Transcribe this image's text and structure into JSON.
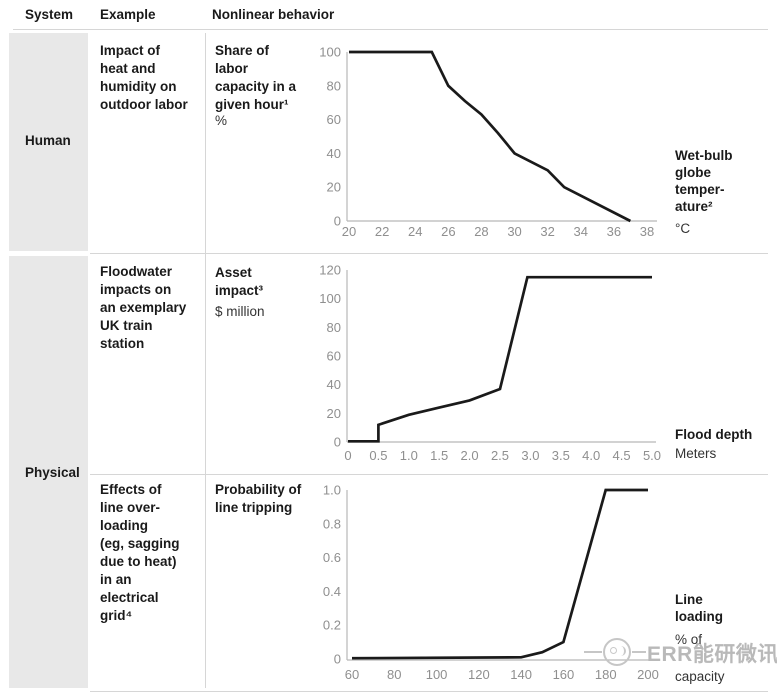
{
  "header": {
    "col_system": "System",
    "col_example": "Example",
    "col_behavior": "Nonlinear behavior"
  },
  "systems": {
    "human": "Human",
    "physical": "Physical"
  },
  "rows": [
    {
      "example": "Impact of\nheat and\nhumidity on\noutdoor labor"
    },
    {
      "example": "Floodwater\nimpacts on\nan exemplary\nUK train\nstation"
    },
    {
      "example": "Effects of\nline over-\nloading\n(eg, sagging\ndue to heat)\nin an\nelectrical\ngrid⁴"
    }
  ],
  "watermark": {
    "text": "ERR能研微讯"
  },
  "colors": {
    "ink": "#1a1a1a",
    "tick_label": "#8f8f8f",
    "axis_line": "#b8b8b8",
    "data_line": "#1a1a1a",
    "cell_gray": "#e8e8e8",
    "rule_gray": "#d6d6d6",
    "watermark_gray": "#b9b9b9"
  },
  "chart_data": [
    {
      "type": "line",
      "ylabel": "Share of labor capacity in a given hour¹",
      "ylabel_display": "Share of\nlabor\ncapacity in a\ngiven hour¹",
      "ylabel_unit": "%",
      "xlabel": "Wet-bulb globe temperature²",
      "xlabel_display": "Wet-bulb\nglobe\ntemper-\nature²",
      "xlabel_unit": "°C",
      "xlim": [
        20,
        38
      ],
      "ylim": [
        0,
        100
      ],
      "x_ticks": [
        "20",
        "22",
        "24",
        "26",
        "28",
        "30",
        "32",
        "34",
        "36",
        "38"
      ],
      "y_ticks": [
        "100",
        "80",
        "60",
        "40",
        "20",
        "0"
      ],
      "grid": false,
      "points": [
        [
          20,
          100
        ],
        [
          25,
          100
        ],
        [
          26,
          80
        ],
        [
          27,
          71
        ],
        [
          28,
          63
        ],
        [
          29,
          52
        ],
        [
          30,
          40
        ],
        [
          32,
          30
        ],
        [
          33,
          20
        ],
        [
          37,
          0
        ]
      ]
    },
    {
      "type": "line",
      "ylabel": "Asset impact³",
      "ylabel_display": "Asset\nimpact³",
      "ylabel_unit": "$ million",
      "xlabel": "Flood depth",
      "xlabel_display": "Flood depth",
      "xlabel_unit": "Meters",
      "xlim": [
        0,
        5
      ],
      "ylim": [
        0,
        120
      ],
      "x_ticks": [
        "0",
        "0.5",
        "1.0",
        "1.5",
        "2.0",
        "2.5",
        "3.0",
        "3.5",
        "4.0",
        "4.5",
        "5.0"
      ],
      "y_ticks": [
        "120",
        "100",
        "80",
        "60",
        "40",
        "20",
        "0"
      ],
      "grid": false,
      "points": [
        [
          0,
          0.5
        ],
        [
          0.5,
          0.5
        ],
        [
          0.5,
          12
        ],
        [
          1,
          19
        ],
        [
          1.5,
          24
        ],
        [
          2,
          29
        ],
        [
          2.5,
          37
        ],
        [
          2.95,
          115
        ],
        [
          5,
          115
        ]
      ]
    },
    {
      "type": "line",
      "ylabel": "Probability of line tripping",
      "ylabel_display": "Probability of\nline tripping",
      "ylabel_unit": "",
      "xlabel": "Line loading",
      "xlabel_display": "Line\nloading",
      "xlabel_unit": "% of capacity",
      "xlabel_unit_lines": [
        "% of",
        "capacity"
      ],
      "xlim": [
        60,
        200
      ],
      "ylim": [
        0,
        1
      ],
      "x_ticks": [
        "60",
        "80",
        "100",
        "120",
        "140",
        "160",
        "180",
        "200"
      ],
      "y_ticks": [
        "1.0",
        "0.8",
        "0.6",
        "0.4",
        "0.2",
        "0"
      ],
      "grid": false,
      "points": [
        [
          60,
          0.005
        ],
        [
          140,
          0.01
        ],
        [
          150,
          0.04
        ],
        [
          160,
          0.1
        ],
        [
          180,
          1
        ],
        [
          200,
          1
        ]
      ]
    }
  ]
}
